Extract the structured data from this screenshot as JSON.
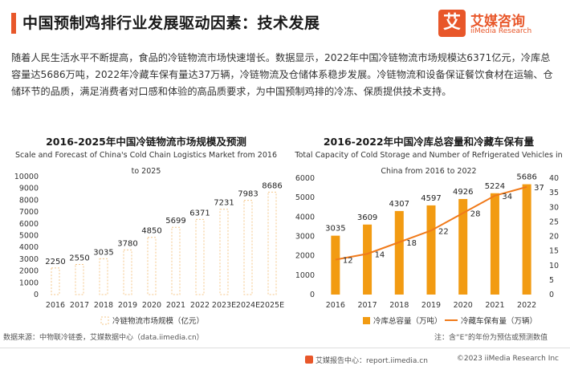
{
  "header": {
    "title": "中国预制鸡排行业发展驱动因素：技术发展",
    "logo_mark": "艾",
    "logo_cn": "艾媒咨询",
    "logo_en": "iiMedia Research"
  },
  "intro": "随着人民生活水平不断提高，食品的冷链物流市场快速增长。数据显示，2022年中国冷链物流市场规模达6371亿元，冷库总容量达5686万吨，2022年冷藏车保有量达37万辆，冷链物流及仓储体系稳步发展。冷链物流和设备保证餐饮食材在运输、仓储环节的品质，满足消费者对口感和体验的高品质要求，为中国预制鸡排的冷冻、保质提供技术支持。",
  "colors": {
    "accent": "#e8572a",
    "bar_left": "#f5c78a",
    "bar_right": "#f29b12",
    "line": "#f07a1a"
  },
  "chart_data": [
    {
      "type": "bar",
      "title": "2016-2025年中国冷链物流市场规模及预测",
      "subtitle": "Scale and Forecast of China's Cold Chain Logistics Market from 2016 to 2025",
      "categories": [
        "2016",
        "2017",
        "2018",
        "2019",
        "2020",
        "2021",
        "2022",
        "2023E",
        "2024E",
        "2025E"
      ],
      "series": [
        {
          "name": "冷链物流市场规模（亿元）",
          "values": [
            2250,
            2550,
            3035,
            3780,
            4850,
            5699,
            6371,
            7231,
            7983,
            8686
          ]
        }
      ],
      "y_ticks": [
        "0",
        "1000",
        "2000",
        "3000",
        "4000",
        "5000",
        "6000",
        "7000",
        "8000",
        "9000",
        "10000"
      ],
      "ylim": [
        0,
        10000
      ],
      "legend_position": "bottom"
    },
    {
      "type": "bar",
      "title": "2016-2022年中国冷库总容量和冷藏车保有量",
      "subtitle": "Total Capacity of Cold Storage and Number of Refrigerated Vehicles in China from 2016 to 2022",
      "categories": [
        "2016",
        "2017",
        "2018",
        "2019",
        "2020",
        "2021",
        "2022"
      ],
      "series": [
        {
          "name": "冷库总容量（万吨）",
          "type": "bar",
          "axis": "left",
          "values": [
            3035,
            3609,
            4307,
            4597,
            4926,
            5224,
            5686
          ]
        },
        {
          "name": "冷藏车保有量（万辆）",
          "type": "line",
          "axis": "right",
          "values": [
            12,
            14,
            18,
            22,
            28,
            34,
            37
          ]
        }
      ],
      "y_ticks": [
        "0",
        "1000",
        "2000",
        "3000",
        "4000",
        "5000",
        "6000"
      ],
      "y2_ticks": [
        "0",
        "5",
        "10",
        "15",
        "20",
        "25",
        "30",
        "35",
        "40"
      ],
      "ylim": [
        0,
        6000
      ],
      "y2lim": [
        0,
        40
      ],
      "legend_position": "bottom"
    }
  ],
  "footer": {
    "source": "数据来源：中物联冷链委，艾媒数据中心（data.iimedia.cn）",
    "note": "注：含“E”的年份为预估或预测数值",
    "report_site": "艾媒报告中心：report.iimedia.cn",
    "copyright": "©2023  iiMedia Research  Inc"
  }
}
